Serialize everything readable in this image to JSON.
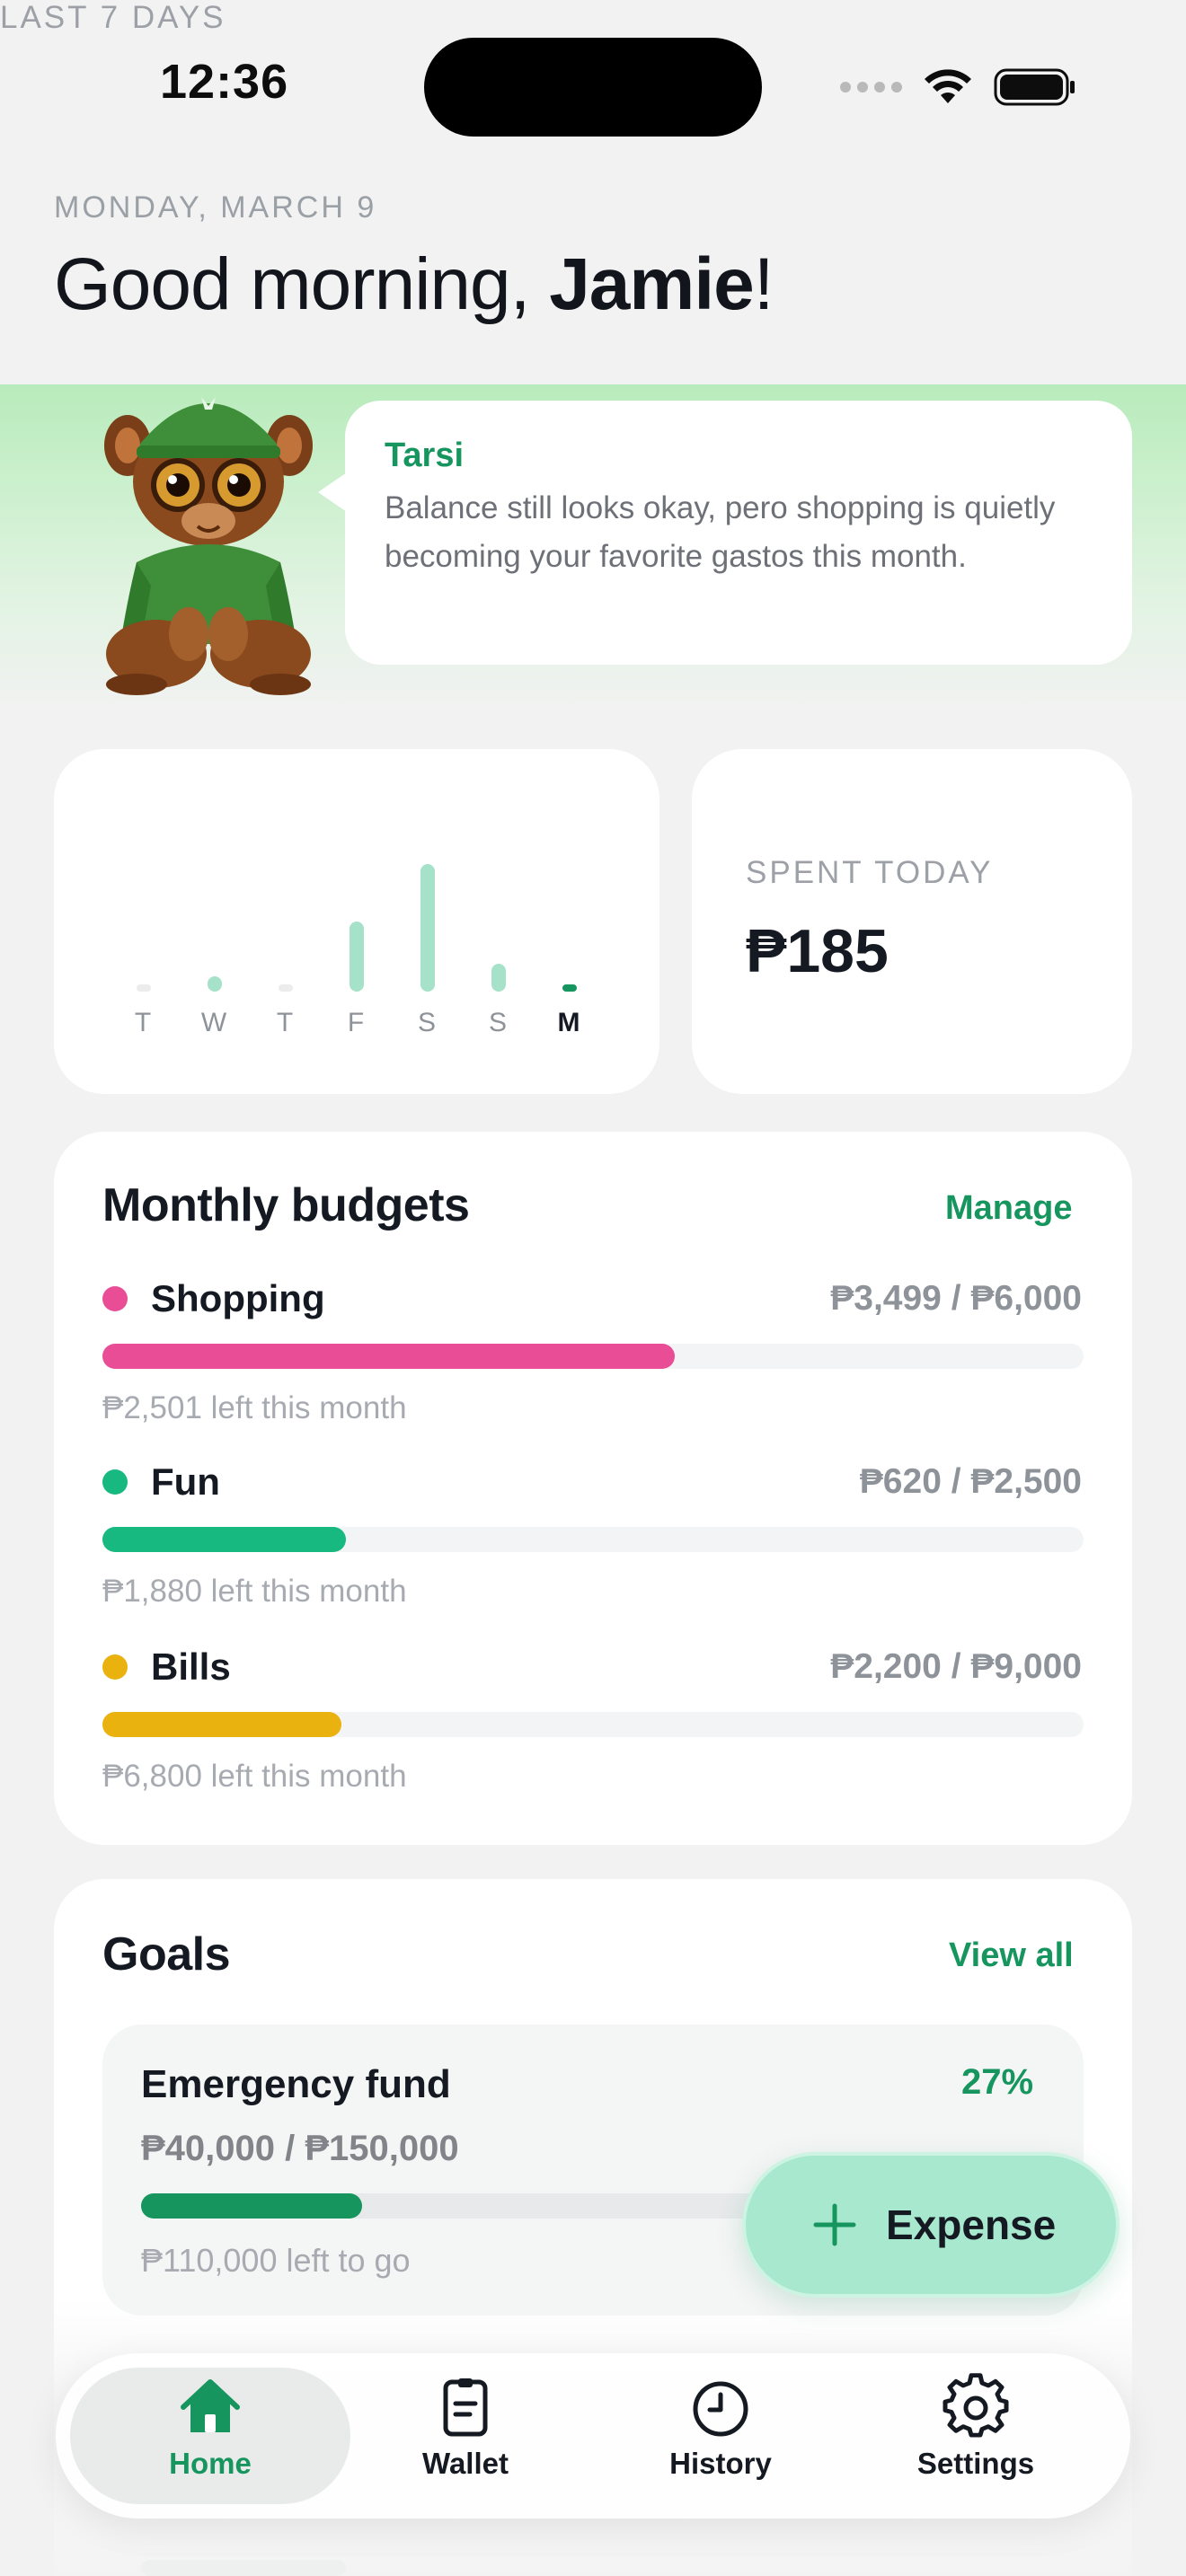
{
  "status_bar": {
    "time": "12:36"
  },
  "header": {
    "date": "MONDAY, MARCH 9",
    "greeting_prefix": "Good morning, ",
    "user_name": "Jamie",
    "greeting_suffix": "!"
  },
  "mascot": {
    "name": "Tarsi",
    "message": "Balance still looks okay, pero shopping is quietly becoming your favorite gastos this month."
  },
  "weekly": {
    "title": "LAST 7 DAYS",
    "days": [
      "T",
      "W",
      "T",
      "F",
      "S",
      "S",
      "M"
    ],
    "values": [
      3,
      12,
      3,
      55,
      100,
      22,
      2
    ],
    "today_index": 6
  },
  "spent_today": {
    "label": "SPENT TODAY",
    "value": "₱185"
  },
  "budgets": {
    "title": "Monthly budgets",
    "manage_label": "Manage",
    "items": [
      {
        "name": "Shopping",
        "amount": "₱3,499 / ₱6,000",
        "progress": 0.583,
        "left": "₱2,501 left this month",
        "color": "#e94d96"
      },
      {
        "name": "Fun",
        "amount": "₱620 / ₱2,500",
        "progress": 0.248,
        "left": "₱1,880 left this month",
        "color": "#17b981"
      },
      {
        "name": "Bills",
        "amount": "₱2,200 / ₱9,000",
        "progress": 0.244,
        "left": "₱6,800 left this month",
        "color": "#e9b20f"
      }
    ]
  },
  "goals": {
    "title": "Goals",
    "view_all_label": "View all",
    "items": [
      {
        "name": "Emergency fund",
        "percent": "27%",
        "amount": "₱40,000 / ₱150,000",
        "progress": 0.267,
        "left": "₱110,000 left to go"
      }
    ]
  },
  "fab": {
    "label": "Expense"
  },
  "tabbar": {
    "tabs": [
      {
        "label": "Home",
        "icon": "home-icon"
      },
      {
        "label": "Wallet",
        "icon": "wallet-icon"
      },
      {
        "label": "History",
        "icon": "clock-icon"
      },
      {
        "label": "Settings",
        "icon": "gear-icon"
      }
    ],
    "active_index": 0
  },
  "colors": {
    "accent": "#17955f",
    "fab": "#a7e8cf"
  }
}
